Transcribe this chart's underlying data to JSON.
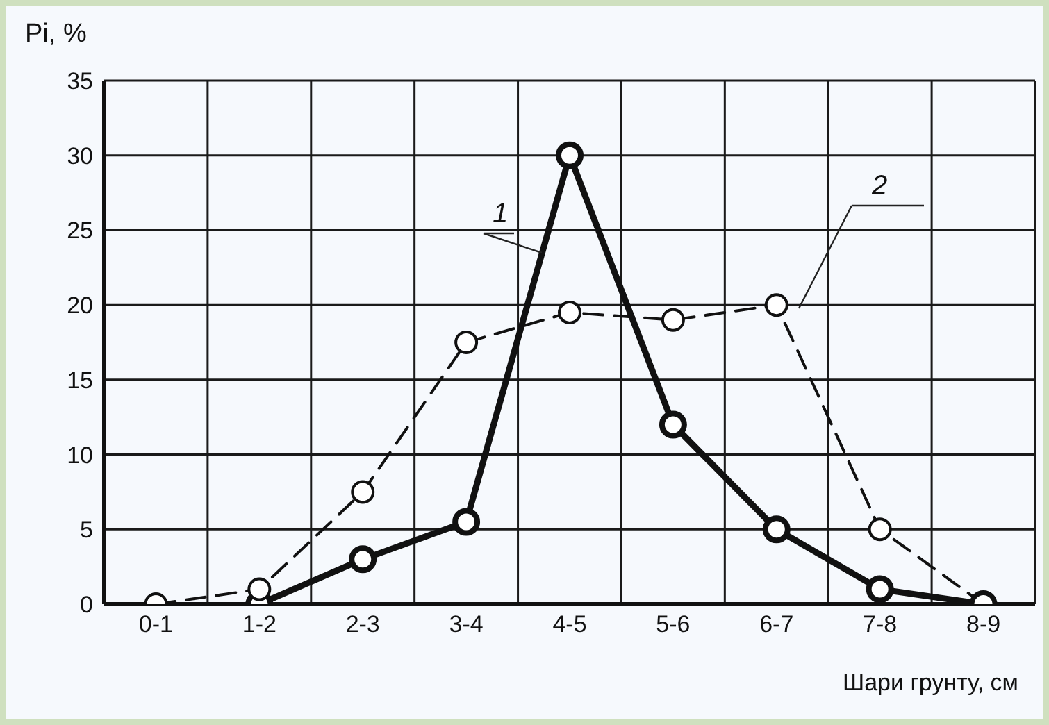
{
  "chart_data": {
    "type": "line",
    "ylabel": "Pi, %",
    "xlabel": "Шари грунту, см",
    "categories": [
      "0-1",
      "1-2",
      "2-3",
      "3-4",
      "4-5",
      "5-6",
      "6-7",
      "7-8",
      "8-9"
    ],
    "ylim": [
      0,
      35
    ],
    "yticks": [
      0,
      5,
      10,
      15,
      20,
      25,
      30,
      35
    ],
    "grid": true,
    "marker": "circle",
    "series": [
      {
        "name": "1",
        "color": "#111111",
        "line_style": "solid",
        "values": [
          null,
          0,
          3,
          5.5,
          30,
          12,
          5,
          1,
          0
        ]
      },
      {
        "name": "2",
        "color": "#111111",
        "line_style": "dashed",
        "values": [
          0,
          1,
          7.5,
          17.5,
          19.5,
          19,
          20,
          5,
          0
        ]
      }
    ]
  }
}
